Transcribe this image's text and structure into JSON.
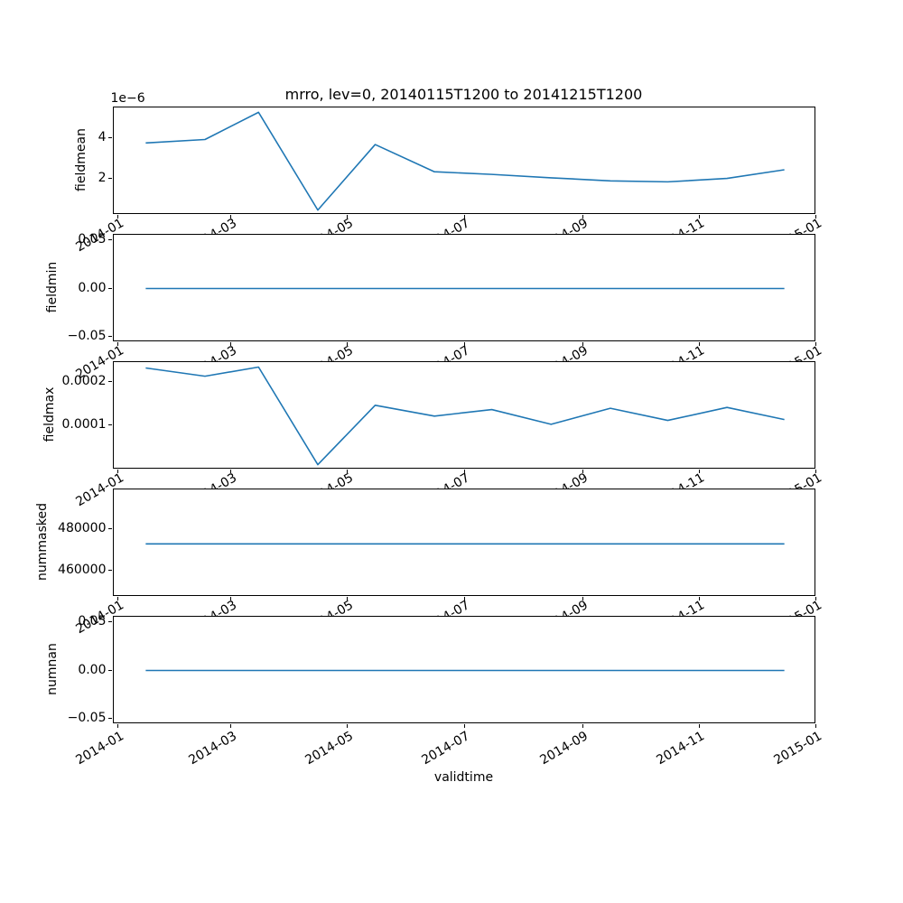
{
  "figure": {
    "title": "mrro, lev=0, 20140115T1200 to 20141215T1200",
    "xlabel": "validtime",
    "line_color": "#1f77b4",
    "background_color": "#ffffff"
  },
  "chart_data": {
    "type": "line",
    "title": "mrro, lev=0, 20140115T1200 to 20141215T1200",
    "xlabel": "validtime",
    "legend": "none",
    "grid": false,
    "x_dates": [
      "2014-01-15",
      "2014-02-15",
      "2014-03-15",
      "2014-04-15",
      "2014-05-15",
      "2014-06-15",
      "2014-07-15",
      "2014-08-15",
      "2014-09-15",
      "2014-10-15",
      "2014-11-15",
      "2014-12-15"
    ],
    "x_day_of_year": [
      14,
      45,
      73,
      104,
      134,
      165,
      195,
      226,
      257,
      287,
      318,
      348
    ],
    "xlim_days": [
      -2.7,
      364.7
    ],
    "xtick_days": [
      0,
      59,
      120,
      181,
      243,
      304,
      365
    ],
    "xtick_labels": [
      "2014-01",
      "2014-03",
      "2014-05",
      "2014-07",
      "2014-09",
      "2014-11",
      "2015-01"
    ],
    "subplots": [
      {
        "ylabel": "fieldmean",
        "offset_text": "1e−6",
        "unit_multiplier": 1e-06,
        "ylim": [
          0.21,
          5.54
        ],
        "yticks": [
          {
            "value": 2,
            "label": "2"
          },
          {
            "value": 4,
            "label": "4"
          }
        ],
        "values": [
          3.78,
          3.95,
          5.3,
          0.45,
          3.7,
          2.35,
          2.22,
          2.05,
          1.9,
          1.85,
          2.02,
          2.45
        ]
      },
      {
        "ylabel": "fieldmin",
        "offset_text": "",
        "unit_multiplier": 1,
        "ylim": [
          -0.0555,
          0.0555
        ],
        "yticks": [
          {
            "value": -0.05,
            "label": "−0.05"
          },
          {
            "value": 0,
            "label": "0.00"
          },
          {
            "value": 0.05,
            "label": "0.05"
          }
        ],
        "values": [
          0,
          0,
          0,
          0,
          0,
          0,
          0,
          0,
          0,
          0,
          0,
          0
        ]
      },
      {
        "ylabel": "fieldmax",
        "offset_text": "",
        "unit_multiplier": 1,
        "ylim": [
          -1.3e-06,
          0.0002465
        ],
        "yticks": [
          {
            "value": 0.0001,
            "label": "0.0001"
          },
          {
            "value": 0.0002,
            "label": "0.0002"
          }
        ],
        "values": [
          0.000233,
          0.000214,
          0.000235,
          1e-05,
          0.000147,
          0.000122,
          0.000137,
          0.000103,
          0.00014,
          0.000112,
          0.000142,
          0.000114
        ]
      },
      {
        "ylabel": "nummasked",
        "offset_text": "",
        "unit_multiplier": 1,
        "ylim": [
          447200,
          499100
        ],
        "yticks": [
          {
            "value": 460000,
            "label": "460000"
          },
          {
            "value": 480000,
            "label": "480000"
          }
        ],
        "values": [
          472800,
          472800,
          472800,
          472800,
          472800,
          472800,
          472800,
          472800,
          472800,
          472800,
          472800,
          472800
        ]
      },
      {
        "ylabel": "numnan",
        "offset_text": "",
        "unit_multiplier": 1,
        "ylim": [
          -0.0555,
          0.0555
        ],
        "yticks": [
          {
            "value": -0.05,
            "label": "−0.05"
          },
          {
            "value": 0,
            "label": "0.00"
          },
          {
            "value": 0.05,
            "label": "0.05"
          }
        ],
        "values": [
          0,
          0,
          0,
          0,
          0,
          0,
          0,
          0,
          0,
          0,
          0,
          0
        ]
      }
    ]
  }
}
